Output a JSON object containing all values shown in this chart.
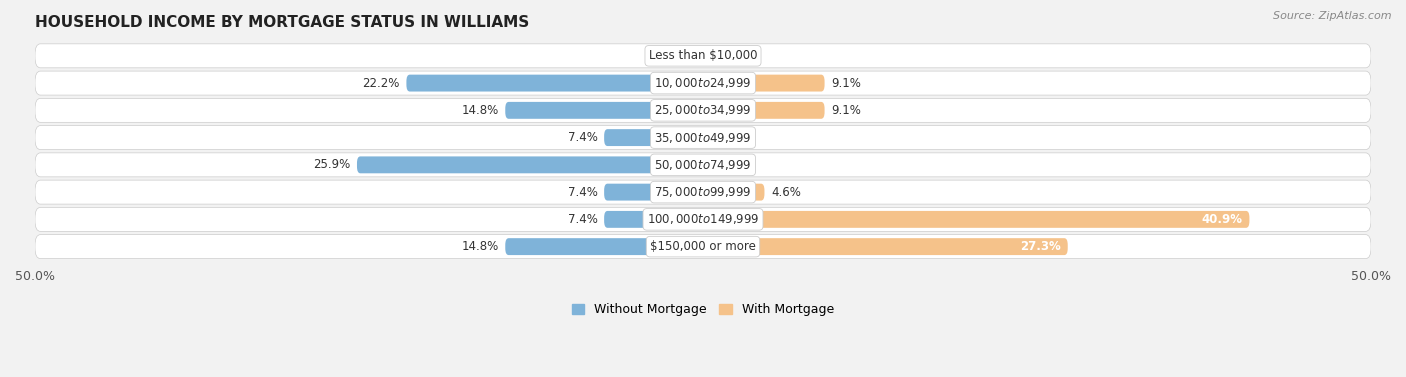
{
  "title": "HOUSEHOLD INCOME BY MORTGAGE STATUS IN WILLIAMS",
  "source": "Source: ZipAtlas.com",
  "categories": [
    "Less than $10,000",
    "$10,000 to $24,999",
    "$25,000 to $34,999",
    "$35,000 to $49,999",
    "$50,000 to $74,999",
    "$75,000 to $99,999",
    "$100,000 to $149,999",
    "$150,000 or more"
  ],
  "without_mortgage": [
    0.0,
    22.2,
    14.8,
    7.4,
    25.9,
    7.4,
    7.4,
    14.8
  ],
  "with_mortgage": [
    0.0,
    9.1,
    9.1,
    0.0,
    0.0,
    4.6,
    40.9,
    27.3
  ],
  "color_without": "#7fb3d9",
  "color_with": "#f5c28a",
  "axis_limit": 50.0,
  "bg_color": "#f2f2f2",
  "row_bg_even": "#ebebeb",
  "row_bg_odd": "#e2e2e2",
  "title_fontsize": 11,
  "label_fontsize": 8.5,
  "tick_fontsize": 9,
  "legend_fontsize": 9,
  "value_fontsize": 8.5
}
